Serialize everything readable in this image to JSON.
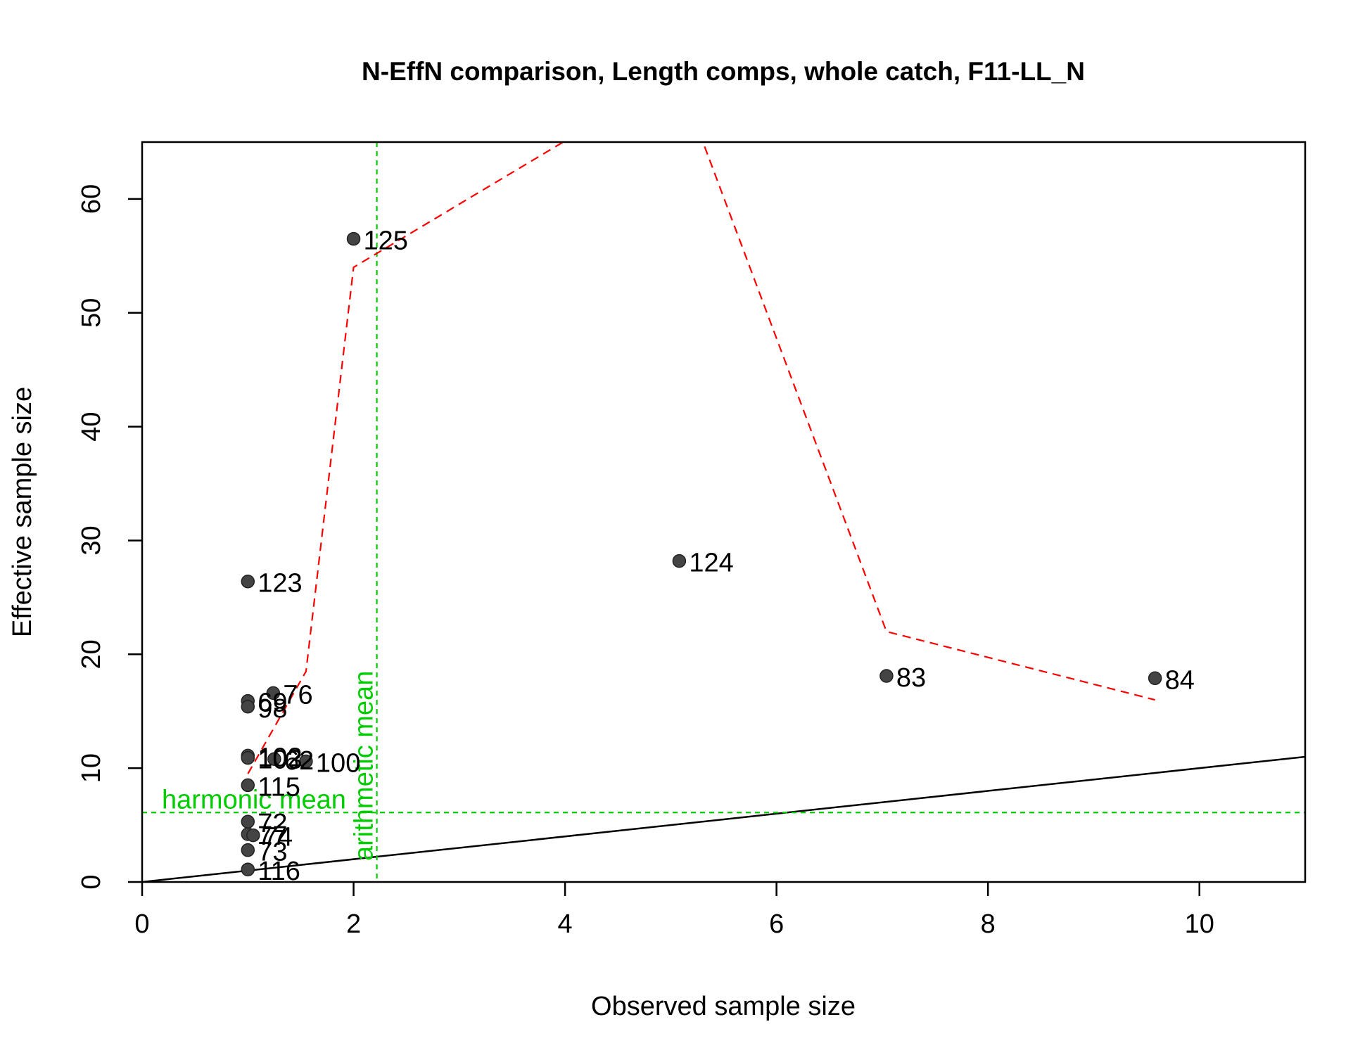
{
  "chart_data": {
    "type": "scatter",
    "title": "N-EffN comparison, Length comps, whole catch, F11-LL_N",
    "xlabel": "Observed sample size",
    "ylabel": "Effective sample size",
    "xlim": [
      0,
      11
    ],
    "ylim": [
      0,
      65
    ],
    "xticks": [
      0,
      2,
      4,
      6,
      8,
      10
    ],
    "yticks": [
      0,
      10,
      20,
      30,
      40,
      50,
      60
    ],
    "x_tick_labels": [
      "0",
      "2",
      "4",
      "6",
      "8",
      "10"
    ],
    "y_tick_labels": [
      "0",
      "10",
      "20",
      "30",
      "40",
      "50",
      "60"
    ],
    "points": [
      {
        "label": "125",
        "x": 2.0,
        "y": 56.5
      },
      {
        "label": "124",
        "x": 5.08,
        "y": 28.2
      },
      {
        "label": "123",
        "x": 1.0,
        "y": 26.4
      },
      {
        "label": "83",
        "x": 7.04,
        "y": 18.1
      },
      {
        "label": "84",
        "x": 9.58,
        "y": 17.9
      },
      {
        "label": "76",
        "x": 1.24,
        "y": 16.6
      },
      {
        "label": "69",
        "x": 1.0,
        "y": 15.9
      },
      {
        "label": "98",
        "x": 1.0,
        "y": 15.4
      },
      {
        "label": "62",
        "x": 1.25,
        "y": 10.8
      },
      {
        "label": "100",
        "x": 1.55,
        "y": 10.6
      },
      {
        "label": "102",
        "x": 1.0,
        "y": 11.1
      },
      {
        "label": "103",
        "x": 1.0,
        "y": 10.9
      },
      {
        "label": "115",
        "x": 1.0,
        "y": 8.5
      },
      {
        "label": "72",
        "x": 1.0,
        "y": 5.3
      },
      {
        "label": "77",
        "x": 1.0,
        "y": 4.2
      },
      {
        "label": "74",
        "x": 1.05,
        "y": 4.1
      },
      {
        "label": "73",
        "x": 1.0,
        "y": 2.8
      },
      {
        "label": "116",
        "x": 1.0,
        "y": 1.1
      }
    ],
    "smoother": {
      "color": "#ff0000",
      "style": "dashed",
      "x": [
        1.0,
        1.55,
        2.0,
        4.0,
        5.3,
        7.04,
        9.58
      ],
      "y": [
        9.5,
        18.5,
        54,
        65.1,
        65.1,
        22,
        16
      ]
    },
    "one_to_one_line": {
      "color": "#000000",
      "x": [
        0,
        11
      ],
      "y": [
        0,
        11
      ]
    },
    "harmonic_mean": {
      "label": "harmonic mean",
      "value": 6.1,
      "color": "#00cc00"
    },
    "arithmetic_mean": {
      "label": "arithmetic mean",
      "value": 2.22,
      "color": "#00cc00"
    },
    "point_color": "#444444"
  }
}
